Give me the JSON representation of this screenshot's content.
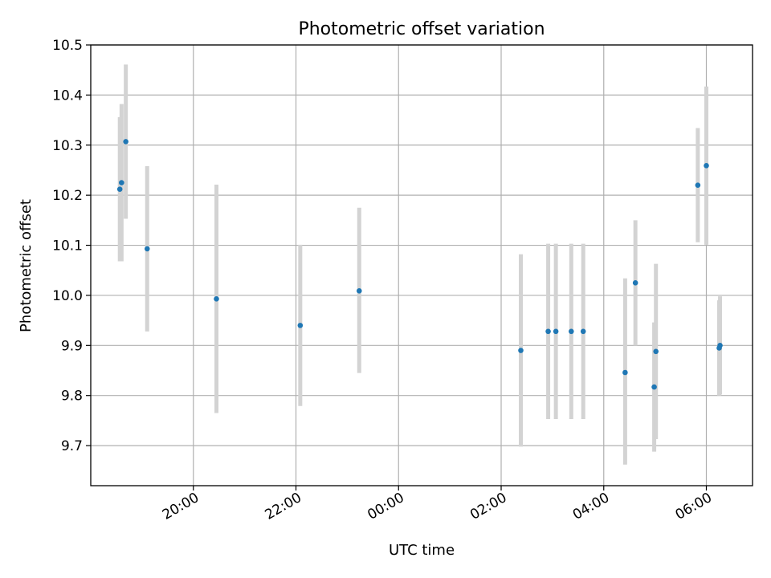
{
  "chart_data": {
    "type": "scatter",
    "title": "Photometric offset variation",
    "xlabel": "UTC time",
    "ylabel": "Photometric offset",
    "ylim": [
      9.62,
      10.5
    ],
    "xlim": [
      "18:00",
      "06:54"
    ],
    "grid": true,
    "legend": "none",
    "colors": {
      "marker": "#1f77b4",
      "errorbar": "#d3d3d3",
      "grid": "#b0b0b0"
    },
    "x_ticks": [
      "20:00",
      "22:00",
      "00:00",
      "02:00",
      "04:00",
      "06:00"
    ],
    "y_ticks": [
      "9.7",
      "9.8",
      "9.9",
      "10.0",
      "10.1",
      "10.2",
      "10.3",
      "10.4",
      "10.5"
    ],
    "points": [
      {
        "x": "18:34",
        "y": 10.212,
        "lo": 10.068,
        "hi": 10.356
      },
      {
        "x": "18:36",
        "y": 10.225,
        "lo": 10.068,
        "hi": 10.382
      },
      {
        "x": "18:41",
        "y": 10.307,
        "lo": 10.153,
        "hi": 10.461
      },
      {
        "x": "19:06",
        "y": 10.093,
        "lo": 9.928,
        "hi": 10.258
      },
      {
        "x": "20:27",
        "y": 9.993,
        "lo": 9.765,
        "hi": 10.221
      },
      {
        "x": "22:05",
        "y": 9.94,
        "lo": 9.779,
        "hi": 10.101
      },
      {
        "x": "23:14",
        "y": 10.009,
        "lo": 9.845,
        "hi": 10.175
      },
      {
        "x": "02:23",
        "y": 9.89,
        "lo": 9.698,
        "hi": 10.082
      },
      {
        "x": "02:55",
        "y": 9.928,
        "lo": 9.753,
        "hi": 10.103
      },
      {
        "x": "03:04",
        "y": 9.928,
        "lo": 9.753,
        "hi": 10.103
      },
      {
        "x": "03:22",
        "y": 9.928,
        "lo": 9.753,
        "hi": 10.103
      },
      {
        "x": "03:36",
        "y": 9.928,
        "lo": 9.753,
        "hi": 10.103
      },
      {
        "x": "04:25",
        "y": 9.846,
        "lo": 9.662,
        "hi": 10.034
      },
      {
        "x": "04:37",
        "y": 10.025,
        "lo": 9.9,
        "hi": 10.15
      },
      {
        "x": "04:59",
        "y": 9.817,
        "lo": 9.688,
        "hi": 9.946
      },
      {
        "x": "05:01",
        "y": 9.888,
        "lo": 9.713,
        "hi": 10.063
      },
      {
        "x": "05:50",
        "y": 10.22,
        "lo": 10.106,
        "hi": 10.334
      },
      {
        "x": "06:00",
        "y": 10.259,
        "lo": 10.101,
        "hi": 10.417
      },
      {
        "x": "06:15",
        "y": 9.895,
        "lo": 9.8,
        "hi": 9.99
      },
      {
        "x": "06:16",
        "y": 9.9,
        "lo": 9.802,
        "hi": 9.998
      }
    ]
  }
}
